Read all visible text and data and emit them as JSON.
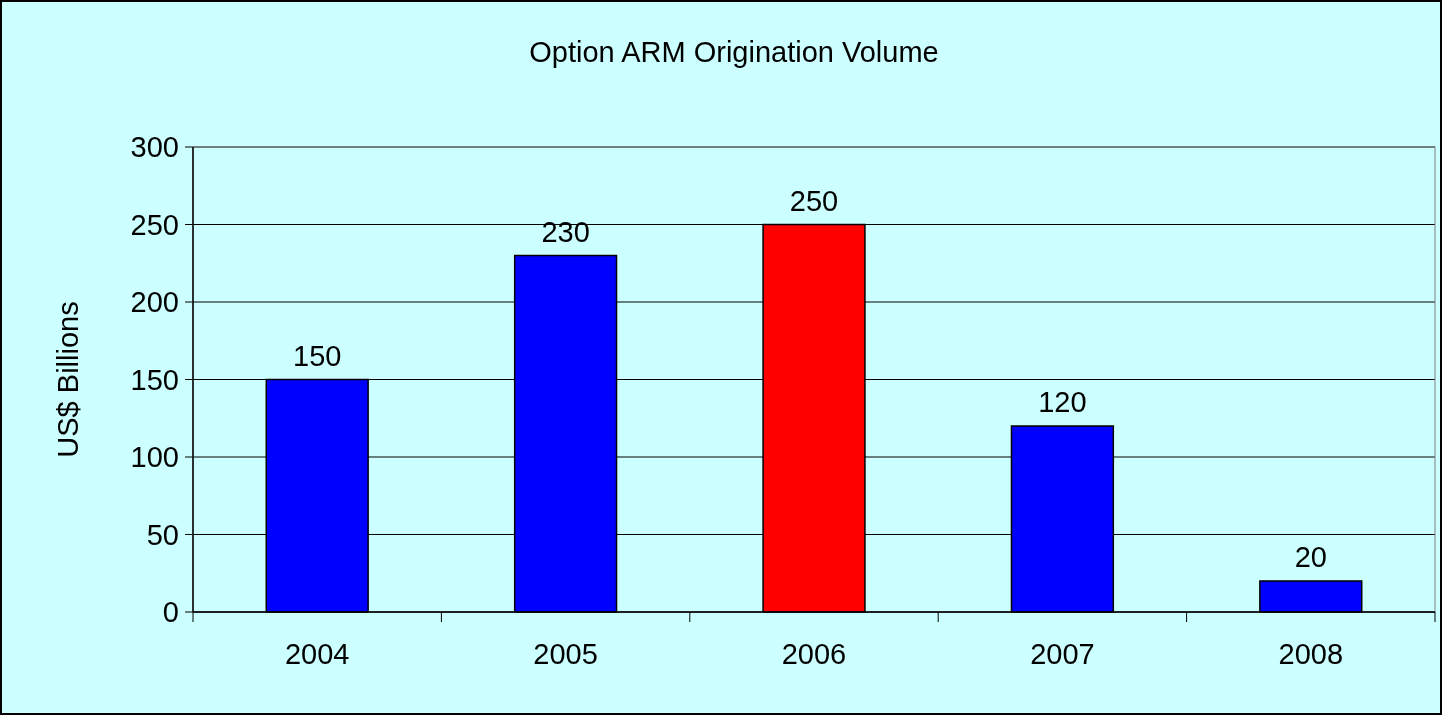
{
  "chart_data": {
    "type": "bar",
    "title": "Option ARM Origination Volume",
    "ylabel": "US$ Billions",
    "categories": [
      "2004",
      "2005",
      "2006",
      "2007",
      "2008"
    ],
    "values": [
      150,
      230,
      250,
      120,
      20
    ],
    "colors": [
      "#0000ff",
      "#0000ff",
      "#ff0000",
      "#0000ff",
      "#0000ff"
    ],
    "ylim": [
      0,
      300
    ],
    "yticks": [
      0,
      50,
      100,
      150,
      200,
      250,
      300
    ],
    "grid": "y",
    "data_labels": true
  }
}
